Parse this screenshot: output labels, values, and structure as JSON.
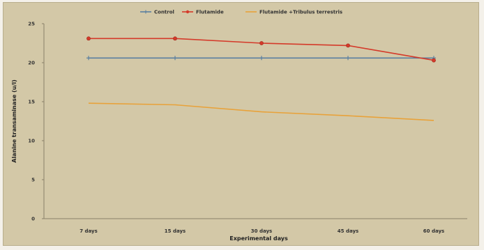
{
  "chart_data": {
    "type": "line",
    "categories": [
      "7 days",
      "15 days",
      "30 days",
      "45 days",
      "60 days"
    ],
    "xlabel": "Experimental days",
    "ylabel": "Alanine transaminase (u/l)",
    "ylim": [
      0,
      25
    ],
    "yticks": [
      0,
      5,
      10,
      15,
      20,
      25
    ],
    "grid": false,
    "legend_position": "top",
    "background_color": "#d3c8a7",
    "series": [
      {
        "name": "Control",
        "color": "#5a7fa0",
        "marker": "plus",
        "values": [
          20.6,
          20.6,
          20.6,
          20.6,
          20.6
        ]
      },
      {
        "name": "Flutamide",
        "color": "#d43a2a",
        "marker": "circle",
        "values": [
          23.1,
          23.1,
          22.5,
          22.2,
          20.3
        ]
      },
      {
        "name": "Flutamide +Tribulus terrestris",
        "color": "#e8a23a",
        "marker": "none",
        "values": [
          14.8,
          14.6,
          13.7,
          13.2,
          12.6
        ]
      }
    ]
  }
}
